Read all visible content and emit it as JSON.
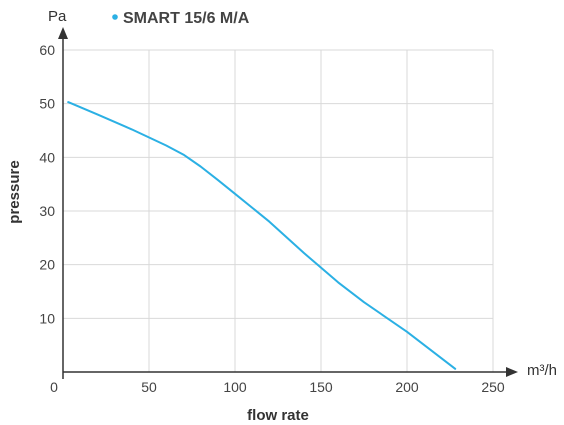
{
  "chart_data": {
    "type": "line",
    "x_unit": "m³/h",
    "y_unit": "Pa",
    "xlabel": "flow rate",
    "ylabel": "pressure",
    "xlim": [
      0,
      250
    ],
    "ylim": [
      0,
      60
    ],
    "x_ticks": [
      "0",
      "50",
      "100",
      "150",
      "200",
      "250"
    ],
    "y_ticks": [
      "10",
      "20",
      "30",
      "40",
      "50",
      "60"
    ],
    "x_tick_values": [
      0,
      50,
      100,
      150,
      200,
      250
    ],
    "y_tick_values": [
      10,
      20,
      30,
      40,
      50,
      60
    ],
    "grid": true,
    "legend_position": "top",
    "series": [
      {
        "name": "SMART 15/6 M/A",
        "color": "#2bb0e4",
        "x": [
          3,
          20,
          40,
          60,
          70,
          80,
          90,
          100,
          120,
          140,
          160,
          175,
          200,
          228
        ],
        "y": [
          50.3,
          48,
          45.2,
          42.2,
          40.5,
          38.3,
          35.8,
          33.2,
          28,
          22.2,
          16.7,
          13,
          7.5,
          0.6
        ]
      }
    ]
  }
}
